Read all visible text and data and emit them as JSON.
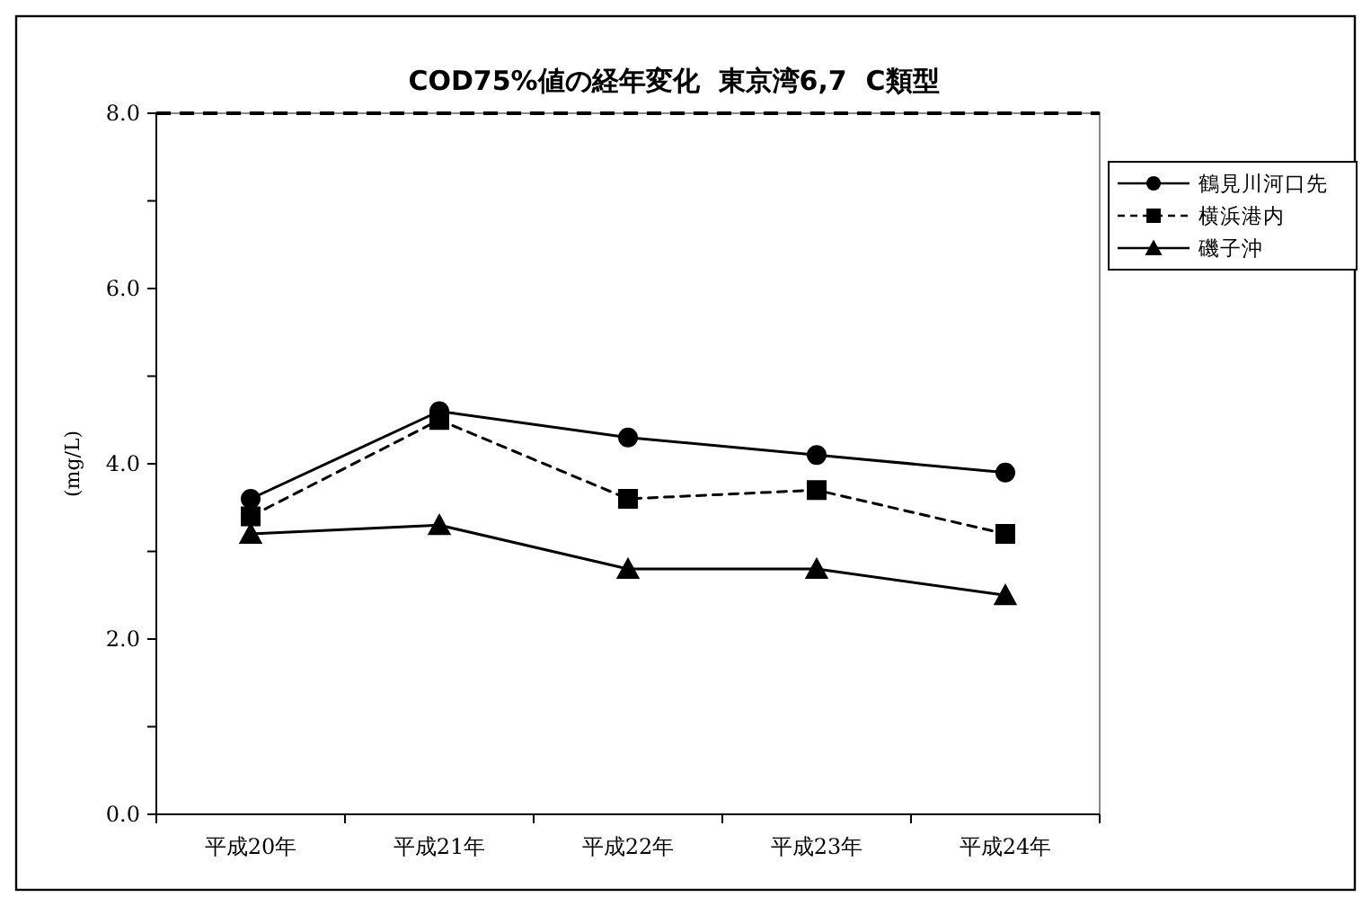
{
  "chart_data": {
    "type": "line",
    "title": "COD75%値の経年変化  東京湾6,7  C類型",
    "ylabel": "(mg/L)",
    "categories": [
      "平成20年",
      "平成21年",
      "平成22年",
      "平成23年",
      "平成24年"
    ],
    "series": [
      {
        "name": "鶴見川河口先",
        "color": "#000000",
        "marker": "circle",
        "line_style": "solid",
        "values": [
          3.6,
          4.6,
          4.3,
          4.1,
          3.9
        ]
      },
      {
        "name": "横浜港内",
        "color": "#000000",
        "marker": "square",
        "line_style": "dashed",
        "values": [
          3.4,
          4.5,
          3.6,
          3.7,
          3.2
        ]
      },
      {
        "name": "磯子沖",
        "color": "#000000",
        "marker": "triangle",
        "line_style": "solid",
        "values": [
          3.2,
          3.3,
          2.8,
          2.8,
          2.5
        ]
      }
    ],
    "ylim": [
      0,
      8
    ],
    "yticks": [
      {
        "value": 0,
        "label": "0.0"
      },
      {
        "value": 1,
        "label": null
      },
      {
        "value": 2,
        "label": "2.0"
      },
      {
        "value": 3,
        "label": null
      },
      {
        "value": 4,
        "label": "4.0"
      },
      {
        "value": 5,
        "label": null
      },
      {
        "value": 6,
        "label": "6.0"
      },
      {
        "value": 7,
        "label": null
      },
      {
        "value": 8,
        "label": "8.0"
      }
    ],
    "ref_lines": [
      {
        "axis": "y",
        "value": 8,
        "color": "#000000",
        "line_style": "dashed"
      }
    ],
    "legend": "top right"
  }
}
